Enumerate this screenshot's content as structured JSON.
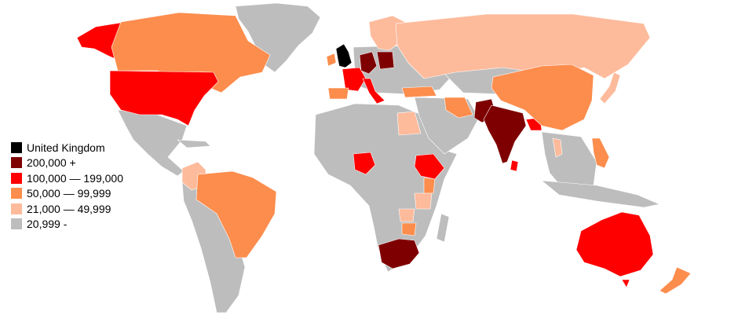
{
  "colors": {
    "uk": "#000000",
    "c200k": "#7f0000",
    "c100k": "#ff0000",
    "c50k": "#fc8d4d",
    "c21k": "#fdbb9c",
    "c0": "#bdbdbd"
  },
  "legend": {
    "items": [
      {
        "label": "United Kingdom",
        "color": "#000000"
      },
      {
        "label": "200,000 +",
        "color": "#7f0000"
      },
      {
        "label": "100,000 — 199,000",
        "color": "#ff0000"
      },
      {
        "label": "50,000 — 99,999",
        "color": "#fc8d4d"
      },
      {
        "label": "21,000 — 49,999",
        "color": "#fdbb9c"
      },
      {
        "label": "20,999 -",
        "color": "#bdbdbd"
      }
    ]
  },
  "regions": {
    "united-kingdom": "uk",
    "ireland": "c50k",
    "india": "c200k",
    "bangladesh": "c100k",
    "pakistan": "c200k",
    "germany": "c200k",
    "poland": "c200k",
    "south-africa": "c200k",
    "usa": "c100k",
    "alaska": "c100k",
    "france": "c100k",
    "italy": "c100k",
    "australia": "c100k",
    "nigeria": "c100k",
    "ethiopia": "c100k",
    "sri-lanka": "c100k",
    "canada": "c50k",
    "brazil": "c50k",
    "china": "c50k",
    "iran": "c50k",
    "spain": "c50k",
    "turkey": "c50k",
    "philippines": "c50k",
    "new-zealand": "c50k",
    "zimbabwe": "c50k",
    "kenya": "c50k",
    "russia": "c21k",
    "scandinavia": "c21k",
    "saudi-arabia": "c21k",
    "colombia": "c21k",
    "japan": "c21k",
    "thailand": "c21k",
    "tanzania": "c21k",
    "zambia": "c21k"
  }
}
